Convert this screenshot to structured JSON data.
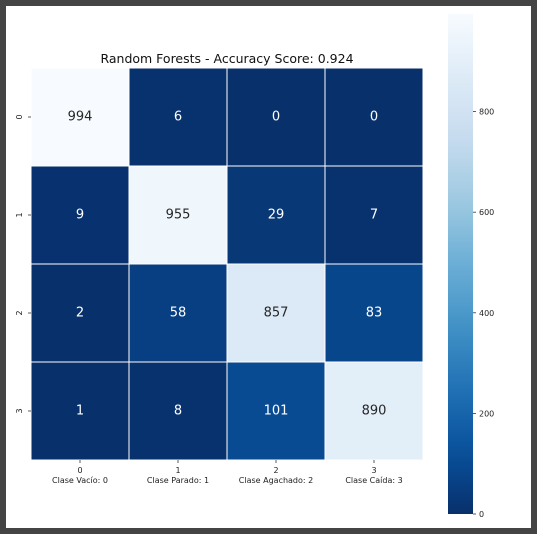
{
  "chart_data": {
    "type": "heatmap",
    "title": "Random Forests - Accuracy Score: 0.924",
    "row_labels": [
      "0",
      "1",
      "2",
      "3"
    ],
    "col_labels": [
      "0\nClase Vacío: 0",
      "1\nClase Parado: 1",
      "2\nClase Agachado: 2",
      "3\nClase Caída: 3"
    ],
    "values": [
      [
        994,
        6,
        0,
        0
      ],
      [
        9,
        955,
        29,
        7
      ],
      [
        2,
        58,
        857,
        83
      ],
      [
        1,
        8,
        101,
        890
      ]
    ],
    "colorbar": {
      "ticks": [
        0,
        200,
        400,
        600,
        800
      ],
      "range": [
        0,
        994
      ],
      "colormap": "Blues",
      "low_color": "#08306b",
      "high_color": "#f7fbff"
    },
    "xlabel": "",
    "ylabel": "",
    "grid": false
  }
}
